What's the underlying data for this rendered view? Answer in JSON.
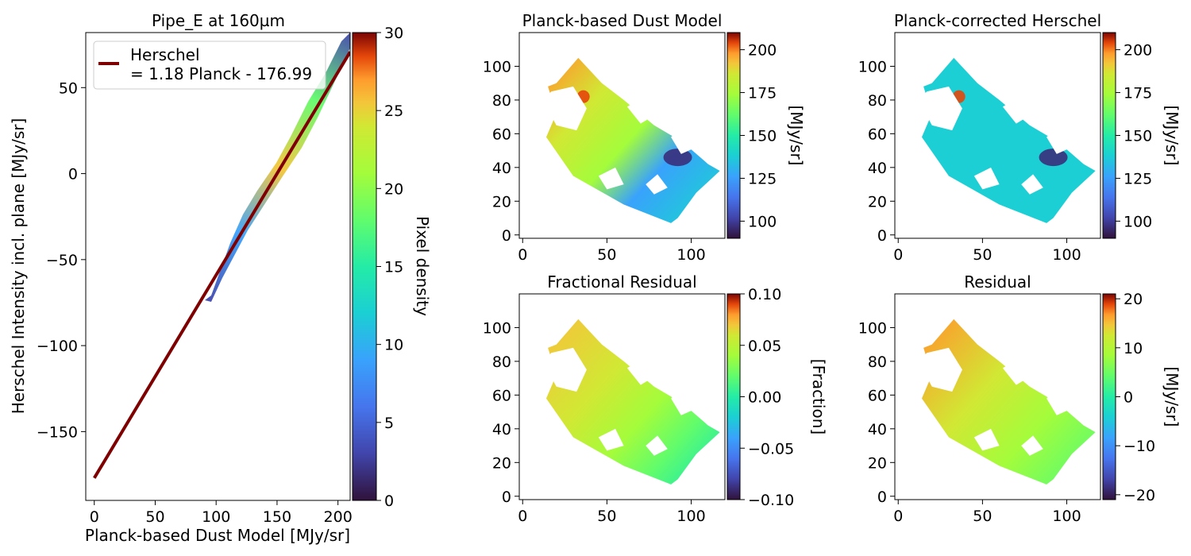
{
  "figure": {
    "scatter": {
      "title": "Pipe_E at 160µm",
      "xlabel": "Planck-based Dust Model [MJy/sr]",
      "ylabel": "Herschel Intensity incl. plane [MJy/sr]",
      "legend_line1": "Herschel",
      "legend_line2": "= 1.18 Planck - 176.99",
      "colorbar_label": "Pixel density"
    },
    "maps": [
      {
        "id": "planck",
        "title": "Planck-based Dust Model",
        "cbar_label": "[MJy/sr]"
      },
      {
        "id": "corrected",
        "title": "Planck-corrected Herschel",
        "cbar_label": "[MJy/sr]"
      },
      {
        "id": "fractional",
        "title": "Fractional Residual",
        "cbar_label": "[Fraction]"
      },
      {
        "id": "residual",
        "title": "Residual",
        "cbar_label": "[MJy/sr]"
      }
    ]
  },
  "chart_data": [
    {
      "type": "heatmap",
      "title": "Pipe_E at 160µm",
      "xlabel": "Planck-based Dust Model [MJy/sr]",
      "ylabel": "Herschel Intensity incl. plane [MJy/sr]",
      "xlim": [
        -7,
        210
      ],
      "ylim": [
        -190,
        82
      ],
      "xticks": [
        0,
        50,
        100,
        150,
        200
      ],
      "yticks": [
        -150,
        -100,
        -50,
        0,
        50
      ],
      "fit_line": {
        "slope": 1.18,
        "intercept": -176.99,
        "x_range": [
          0,
          210
        ],
        "color": "#7f0000"
      },
      "density_points": [
        [
          95,
          -72
        ],
        [
          130,
          -25
        ],
        [
          160,
          12
        ],
        [
          190,
          48
        ],
        [
          210,
          80
        ]
      ],
      "legend": {
        "entries": [
          "Herschel\n= 1.18 Planck - 176.99"
        ],
        "placement": "top-left"
      },
      "colorbar": {
        "label": "Pixel density",
        "range": [
          0,
          30
        ],
        "ticks": [
          0,
          5,
          10,
          15,
          20,
          25,
          30
        ],
        "colormap": "turbo"
      }
    },
    {
      "type": "heatmap",
      "title": "Planck-based Dust Model",
      "xlim": [
        -2,
        120
      ],
      "ylim": [
        -2,
        120
      ],
      "xticks": [
        0,
        50,
        100
      ],
      "yticks": [
        0,
        20,
        40,
        60,
        80,
        100
      ],
      "colorbar": {
        "label": "[MJy/sr]",
        "range": [
          90,
          210
        ],
        "ticks": [
          100,
          125,
          150,
          175,
          200
        ],
        "colormap": "turbo"
      }
    },
    {
      "type": "heatmap",
      "title": "Planck-corrected Herschel",
      "xlim": [
        -2,
        120
      ],
      "ylim": [
        -2,
        120
      ],
      "xticks": [
        0,
        50,
        100
      ],
      "yticks": [
        0,
        20,
        40,
        60,
        80,
        100
      ],
      "colorbar": {
        "label": "[MJy/sr]",
        "range": [
          90,
          210
        ],
        "ticks": [
          100,
          125,
          150,
          175,
          200
        ],
        "colormap": "turbo"
      }
    },
    {
      "type": "heatmap",
      "title": "Fractional Residual",
      "xlim": [
        -2,
        120
      ],
      "ylim": [
        -2,
        120
      ],
      "xticks": [
        0,
        50,
        100
      ],
      "yticks": [
        0,
        20,
        40,
        60,
        80,
        100
      ],
      "colorbar": {
        "label": "[Fraction]",
        "range": [
          -0.1,
          0.1
        ],
        "ticks": [
          -0.1,
          -0.05,
          0.0,
          0.05,
          0.1
        ],
        "tick_labels": [
          "−0.10",
          "−0.05",
          "0.00",
          "0.05",
          "0.10"
        ],
        "colormap": "turbo"
      }
    },
    {
      "type": "heatmap",
      "title": "Residual",
      "xlim": [
        -2,
        120
      ],
      "ylim": [
        -2,
        120
      ],
      "xticks": [
        0,
        50,
        100
      ],
      "yticks": [
        0,
        20,
        40,
        60,
        80,
        100
      ],
      "colorbar": {
        "label": "[MJy/sr]",
        "range": [
          -21,
          21
        ],
        "ticks": [
          -20,
          -10,
          0,
          10,
          20
        ],
        "colormap": "turbo"
      }
    }
  ]
}
